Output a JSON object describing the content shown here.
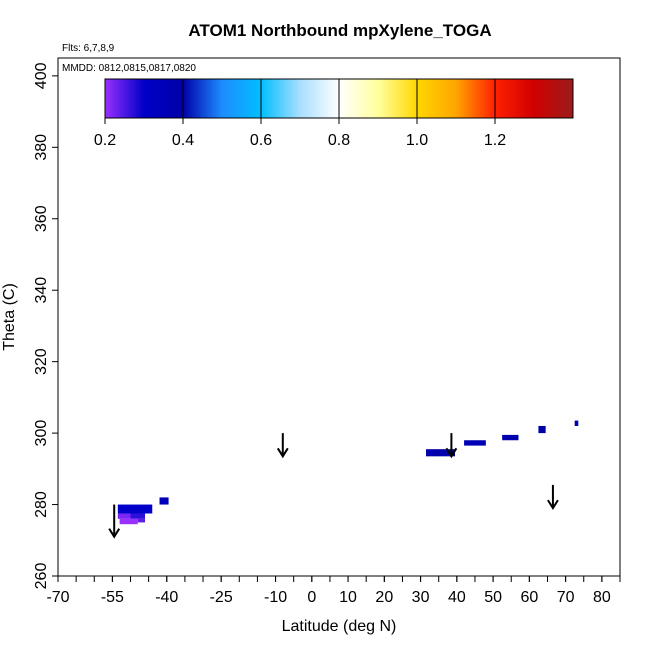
{
  "chart_data": {
    "type": "heatmap",
    "title": "ATOM1 Northbound mpXylene_TOGA",
    "flights_note": "Flts: 6,7,8,9",
    "dates_note": "MMDD: 0812,0815,0817,0820",
    "xlabel": "Latitude (deg N)",
    "ylabel": "Theta (C)",
    "xlim": [
      -70,
      85
    ],
    "ylim": [
      260,
      405
    ],
    "x_ticks": [
      {
        "value": -70,
        "label": "-70"
      },
      {
        "value": -55,
        "label": "-55"
      },
      {
        "value": -40,
        "label": "-40"
      },
      {
        "value": -25,
        "label": "-25"
      },
      {
        "value": -10,
        "label": "-10"
      },
      {
        "value": 0,
        "label": "0"
      },
      {
        "value": 10,
        "label": "10"
      },
      {
        "value": 20,
        "label": "20"
      },
      {
        "value": 30,
        "label": "30"
      },
      {
        "value": 40,
        "label": "40"
      },
      {
        "value": 50,
        "label": "50"
      },
      {
        "value": 60,
        "label": "60"
      },
      {
        "value": 70,
        "label": "70"
      },
      {
        "value": 80,
        "label": "80"
      }
    ],
    "y_ticks": [
      {
        "value": 260,
        "label": "260"
      },
      {
        "value": 280,
        "label": "280"
      },
      {
        "value": 300,
        "label": "300"
      },
      {
        "value": 320,
        "label": "320"
      },
      {
        "value": 340,
        "label": "340"
      },
      {
        "value": 360,
        "label": "360"
      },
      {
        "value": 380,
        "label": "380"
      },
      {
        "value": 400,
        "label": "400"
      }
    ],
    "colorbar": {
      "range": [
        0.2,
        1.4
      ],
      "ticks": [
        {
          "value": 0.2,
          "label": "0.2"
        },
        {
          "value": 0.4,
          "label": "0.4"
        },
        {
          "value": 0.6,
          "label": "0.6"
        },
        {
          "value": 0.8,
          "label": "0.8"
        },
        {
          "value": 1.0,
          "label": "1.0"
        },
        {
          "value": 1.2,
          "label": "1.2"
        }
      ],
      "stops": [
        {
          "value": 0.2,
          "color": "#9a30ff"
        },
        {
          "value": 0.3,
          "color": "#0000c8"
        },
        {
          "value": 0.4,
          "color": "#0000a8"
        },
        {
          "value": 0.5,
          "color": "#1e8cff"
        },
        {
          "value": 0.6,
          "color": "#00bfff"
        },
        {
          "value": 0.7,
          "color": "#a8deff"
        },
        {
          "value": 0.8,
          "color": "#ffffff"
        },
        {
          "value": 0.9,
          "color": "#ffff9e"
        },
        {
          "value": 1.0,
          "color": "#ffd700"
        },
        {
          "value": 1.1,
          "color": "#ffa500"
        },
        {
          "value": 1.2,
          "color": "#ff2000"
        },
        {
          "value": 1.3,
          "color": "#d00000"
        },
        {
          "value": 1.4,
          "color": "#9b1c1c"
        }
      ]
    },
    "cells": [
      {
        "lat0": -53.5,
        "lat1": -44,
        "theta0": 277.5,
        "theta1": 280,
        "value": 0.3
      },
      {
        "lat0": -42,
        "lat1": -39.5,
        "theta0": 280,
        "theta1": 282,
        "value": 0.35
      },
      {
        "lat0": -53.5,
        "lat1": -50,
        "theta0": 276,
        "theta1": 277.5,
        "value": 0.22
      },
      {
        "lat0": -50,
        "lat1": -46,
        "theta0": 276,
        "theta1": 277.5,
        "value": 0.27
      },
      {
        "lat0": -53,
        "lat1": -48,
        "theta0": 274.5,
        "theta1": 276,
        "value": 0.2
      },
      {
        "lat0": -48,
        "lat1": -46,
        "theta0": 275,
        "theta1": 276,
        "value": 0.24
      },
      {
        "lat0": 31.5,
        "lat1": 39.5,
        "theta0": 293.5,
        "theta1": 295.5,
        "value": 0.38
      },
      {
        "lat0": 42,
        "lat1": 48,
        "theta0": 296.5,
        "theta1": 298,
        "value": 0.36
      },
      {
        "lat0": 52.5,
        "lat1": 57,
        "theta0": 298,
        "theta1": 299.5,
        "value": 0.38
      },
      {
        "lat0": 62.5,
        "lat1": 64.5,
        "theta0": 300,
        "theta1": 302,
        "value": 0.4
      },
      {
        "lat0": 72.5,
        "lat1": 73.5,
        "theta0": 302,
        "theta1": 303.5,
        "value": 0.37
      }
    ],
    "arrows": [
      {
        "lat": -54.5,
        "theta_top": 280,
        "theta_bottom": 271
      },
      {
        "lat": -8,
        "theta_top": 300,
        "theta_bottom": 293.5
      },
      {
        "lat": 38.5,
        "theta_top": 300,
        "theta_bottom": 293.5
      },
      {
        "lat": 66.5,
        "theta_top": 285.5,
        "theta_bottom": 279
      }
    ]
  }
}
